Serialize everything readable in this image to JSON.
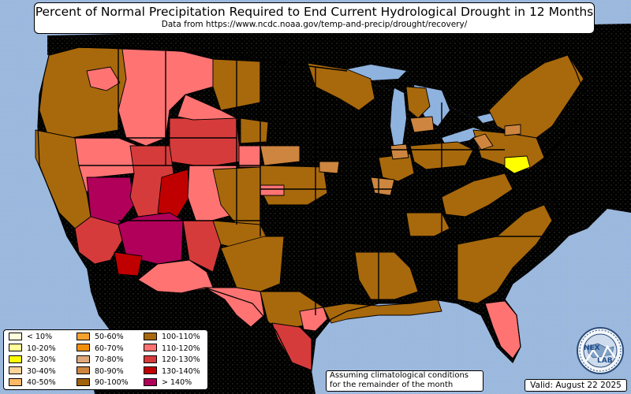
{
  "title": "Percent of Normal Precipitation Required to End Current Hydrological Drought in 12 Months",
  "subtitle": "Data from https://www.ncdc.noaa.gov/temp-and-precip/drought/recovery/",
  "colors": {
    "ocean": "#9bb8df",
    "land_us": "#eeeacb",
    "land_other": "#d9dcbf",
    "lakes": "#8fb3df",
    "lt10": "#ffffdc",
    "b10_20": "#ffff9a",
    "b20_30": "#ffff00",
    "b30_40": "#ffd29a",
    "b40_50": "#ffb866",
    "b50_60": "#f5a130",
    "b60_70": "#f0900a",
    "b70_80": "#dfa87a",
    "b80_90": "#cd853f",
    "b90_100": "#a0620d",
    "b100_110": "#a8690c",
    "b110_120": "#ff7373",
    "b120_130": "#d63b3b",
    "b130_140": "#c00000",
    "gt140": "#b0005a"
  },
  "legend": {
    "items": [
      {
        "label": "< 10%",
        "color": "#ffffdc"
      },
      {
        "label": "10-20%",
        "color": "#ffff9a"
      },
      {
        "label": "20-30%",
        "color": "#ffff00"
      },
      {
        "label": "30-40%",
        "color": "#ffd29a"
      },
      {
        "label": "40-50%",
        "color": "#ffb866"
      },
      {
        "label": "50-60%",
        "color": "#f5a130"
      },
      {
        "label": "60-70%",
        "color": "#f0900a"
      },
      {
        "label": "70-80%",
        "color": "#dfa87a"
      },
      {
        "label": "80-90%",
        "color": "#cd853f"
      },
      {
        "label": "90-100%",
        "color": "#a0620d"
      },
      {
        "label": "100-110%",
        "color": "#a8690c"
      },
      {
        "label": "110-120%",
        "color": "#ff7373"
      },
      {
        "label": "120-130%",
        "color": "#d63b3b"
      },
      {
        "label": "130-140%",
        "color": "#c00000"
      },
      {
        "label": "> 140%",
        "color": "#b0005a"
      }
    ]
  },
  "note": {
    "line1": "Assuming climatological conditions",
    "line2": "for the remainder of the month"
  },
  "valid": "Valid: August 22 2025",
  "logo": {
    "icon": "nexlab-globe-logo",
    "text1": "NEX",
    "text2": "LAB"
  }
}
